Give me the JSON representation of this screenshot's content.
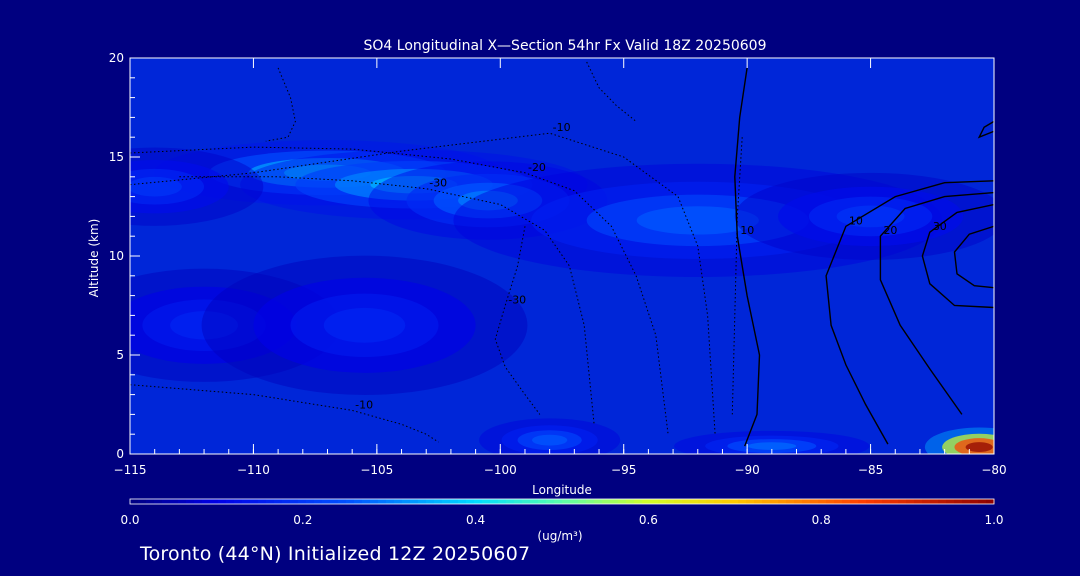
{
  "chart_data": {
    "type": "heatmap",
    "title": "SO4 Longitudinal X—Section 54hr  Fx Valid 18Z 20250609",
    "xlabel": "Longitude",
    "ylabel": "Altitude (km)",
    "xlim": [
      -115,
      -80
    ],
    "ylim": [
      0,
      20
    ],
    "x_ticks": [
      -115,
      -110,
      -105,
      -100,
      -95,
      -90,
      -85,
      -80
    ],
    "x_tick_labels": [
      "−115",
      "−110",
      "−105",
      "−100",
      "−95",
      "−90",
      "−85",
      "−80"
    ],
    "y_ticks": [
      0,
      5,
      10,
      15,
      20
    ],
    "y_tick_labels": [
      "0",
      "5",
      "10",
      "15",
      "20"
    ],
    "colorbar": {
      "min": 0.0,
      "max": 1.0,
      "ticks": [
        "0.0",
        "0.2",
        "0.4",
        "0.6",
        "0.8",
        "1.0"
      ],
      "units": "(ug/m³)",
      "colormap": "rainbow"
    },
    "plumes": [
      {
        "lon": -107.0,
        "alt": 14.2,
        "slon": 3.2,
        "salt": 0.75,
        "value": 0.4
      },
      {
        "lon": -103.5,
        "alt": 13.6,
        "slon": 3.2,
        "salt": 0.8,
        "value": 0.36
      },
      {
        "lon": -100.5,
        "alt": 12.8,
        "slon": 2.2,
        "salt": 0.9,
        "value": 0.3
      },
      {
        "lon": -92.0,
        "alt": 11.8,
        "slon": 4.5,
        "salt": 1.3,
        "value": 0.26
      },
      {
        "lon": -85.0,
        "alt": 12.0,
        "slon": 2.5,
        "salt": 1.0,
        "value": 0.2
      },
      {
        "lon": -114.0,
        "alt": 13.5,
        "slon": 2.0,
        "salt": 0.9,
        "value": 0.2
      },
      {
        "lon": -112.0,
        "alt": 6.5,
        "slon": 2.5,
        "salt": 1.3,
        "value": 0.17
      },
      {
        "lon": -105.5,
        "alt": 6.5,
        "slon": 3.0,
        "salt": 1.6,
        "value": 0.17
      },
      {
        "lon": -98.0,
        "alt": 0.7,
        "slon": 1.3,
        "salt": 0.5,
        "value": 0.26
      },
      {
        "lon": -89.0,
        "alt": 0.4,
        "slon": 1.8,
        "salt": 0.35,
        "value": 0.28
      },
      {
        "lon": -80.6,
        "alt": 0.35,
        "slon": 1.0,
        "salt": 0.45,
        "value": 1.0
      }
    ],
    "contours": [
      {
        "label": "10",
        "style": "solid",
        "lon": [
          -90,
          -90.3,
          -90.5,
          -90.4,
          -90.0,
          -89.5,
          -89.6,
          -90.1
        ],
        "alt": [
          19.5,
          17,
          14,
          11,
          8,
          5,
          2,
          0.4
        ]
      },
      {
        "label": "10",
        "style": "solid",
        "lon": [
          -80,
          -82,
          -84,
          -86,
          -86.8,
          -86.6,
          -86,
          -85.2,
          -84.3
        ],
        "alt": [
          13.8,
          13.7,
          13.0,
          11.5,
          9,
          6.5,
          4.5,
          2.5,
          0.5
        ]
      },
      {
        "label": "20",
        "style": "solid",
        "lon": [
          -80,
          -82,
          -83.6,
          -84.6,
          -84.6,
          -83.8,
          -82.6,
          -81.3
        ],
        "alt": [
          13.2,
          13.0,
          12.4,
          11,
          8.8,
          6.5,
          4.3,
          2.0
        ]
      },
      {
        "label": "30",
        "style": "solid",
        "lon": [
          -80,
          -81.5,
          -82.6,
          -82.9,
          -82.6,
          -81.6,
          -80
        ],
        "alt": [
          12.6,
          12.2,
          11.2,
          10,
          8.6,
          7.5,
          7.4
        ]
      },
      {
        "label": "",
        "style": "solid",
        "lon": [
          -80,
          -81,
          -81.6,
          -81.5,
          -80.8,
          -80
        ],
        "alt": [
          11.5,
          11.1,
          10.2,
          9.1,
          8.5,
          8.4
        ]
      },
      {
        "label": "",
        "style": "solid",
        "lon": [
          -80,
          -80.6,
          -80.4,
          -80
        ],
        "alt": [
          16.3,
          16.0,
          16.5,
          16.8
        ]
      },
      {
        "label": "-20",
        "style": "dotted",
        "lon": [
          -115,
          -110,
          -106,
          -102,
          -99,
          -97,
          -95.5,
          -94.5,
          -93.7,
          -93.2
        ],
        "alt": [
          15.2,
          15.5,
          15.4,
          14.9,
          14.2,
          13.3,
          11.5,
          9.0,
          6.0,
          1.0
        ]
      },
      {
        "label": "-30",
        "style": "dotted",
        "lon": [
          -113,
          -109,
          -106,
          -103,
          -100,
          -98.2,
          -97.2,
          -96.6,
          -96.2
        ],
        "alt": [
          14.0,
          14.0,
          13.8,
          13.4,
          12.6,
          11.3,
          9.5,
          6.5,
          1.5
        ]
      },
      {
        "label": "-10",
        "style": "dotted",
        "lon": [
          -115,
          -110,
          -104,
          -98,
          -95,
          -92.8,
          -92.0,
          -91.6,
          -91.3
        ],
        "alt": [
          13.6,
          14.2,
          15.3,
          16.2,
          15.0,
          13.0,
          10.5,
          7.0,
          1.0
        ]
      },
      {
        "label": "-30",
        "style": "dotted",
        "lon": [
          -99,
          -99.3,
          -99.8,
          -100.2,
          -99.8,
          -99.0,
          -98.4
        ],
        "alt": [
          11.5,
          9.5,
          7.5,
          5.8,
          4.4,
          3.0,
          2.0
        ]
      },
      {
        "label": "-10",
        "style": "dotted",
        "lon": [
          -115,
          -110,
          -106,
          -104,
          -103,
          -102.5
        ],
        "alt": [
          3.5,
          3.0,
          2.2,
          1.5,
          1.0,
          0.6
        ]
      },
      {
        "label": "",
        "style": "dotted",
        "lon": [
          -109,
          -108.5,
          -108.3,
          -108.6,
          -109.5
        ],
        "alt": [
          19.5,
          18.0,
          16.8,
          16.0,
          15.8
        ]
      },
      {
        "label": "",
        "style": "dotted",
        "lon": [
          -96.5,
          -96.0,
          -95.3,
          -94.5
        ],
        "alt": [
          19.8,
          18.5,
          17.6,
          16.8
        ]
      },
      {
        "label": "",
        "style": "dotted",
        "lon": [
          -90.2,
          -90.4,
          -90.5,
          -90.6
        ],
        "alt": [
          16.0,
          12.0,
          7.0,
          2.0
        ]
      }
    ]
  },
  "footer": "Toronto (44°N) Initialized 12Z 20250607"
}
